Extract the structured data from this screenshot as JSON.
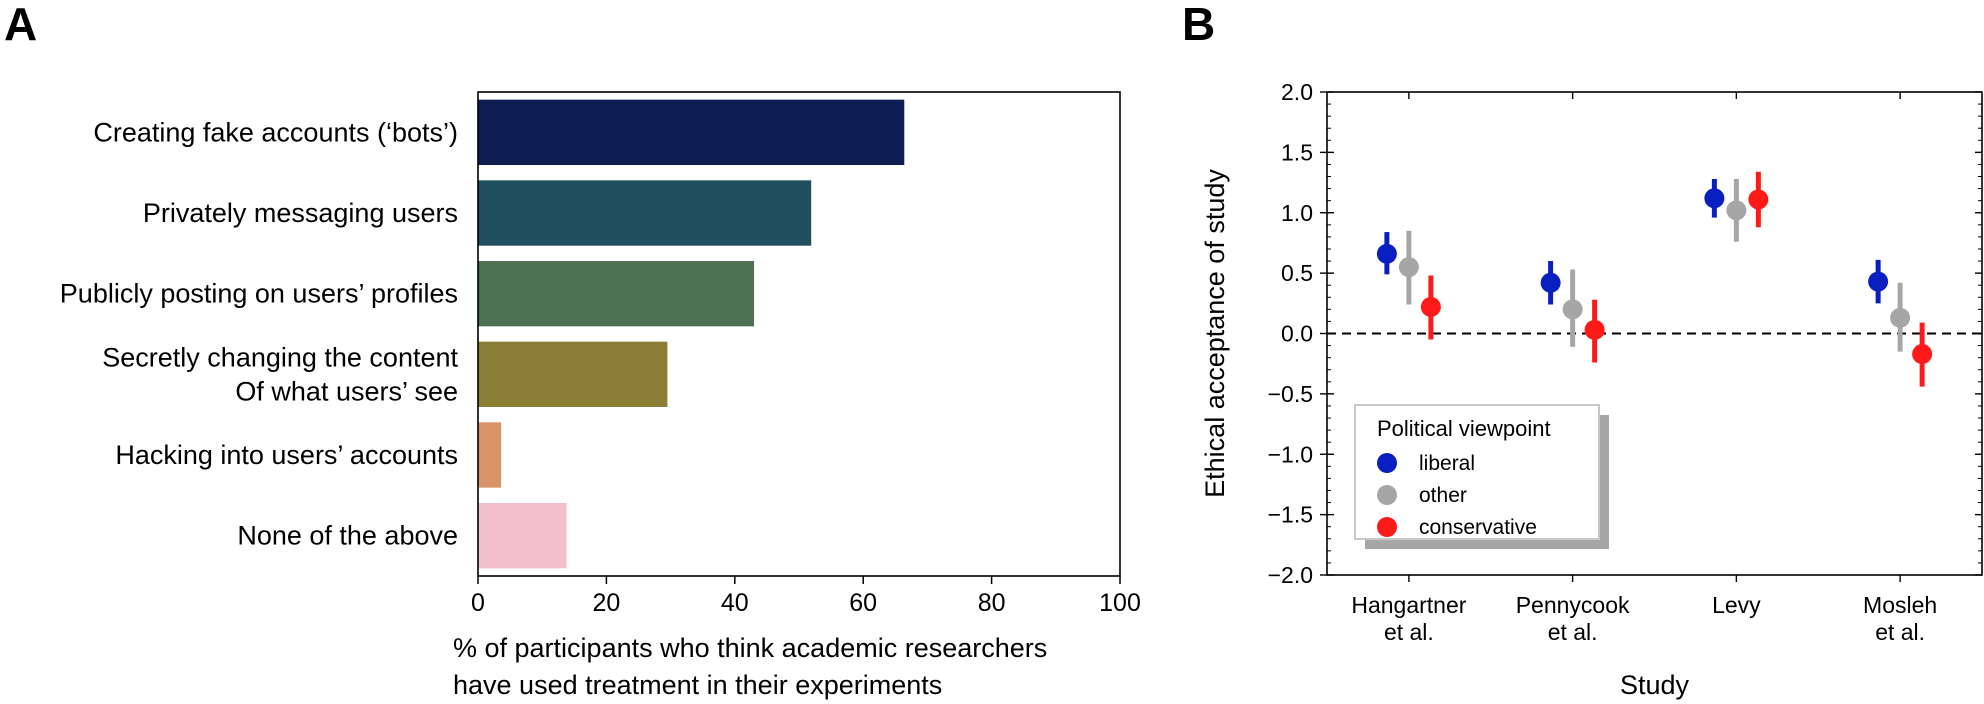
{
  "panels": {
    "a_label": "A",
    "b_label": "B"
  },
  "chart_data": [
    {
      "type": "bar",
      "orientation": "horizontal",
      "categories": [
        [
          "Creating fake accounts (‘bots’)"
        ],
        [
          "Privately messaging users"
        ],
        [
          "Publicly posting on users’ profiles"
        ],
        [
          "Secretly changing the content",
          "Of what users’ see"
        ],
        [
          "Hacking into users’ accounts"
        ],
        [
          "None of the above"
        ]
      ],
      "values": [
        66.4,
        51.9,
        43.0,
        29.5,
        3.6,
        13.8
      ],
      "colors": [
        "#0f1e52",
        "#1f4e5f",
        "#4d7152",
        "#8a7f35",
        "#d9946a",
        "#f3bfcb"
      ],
      "xlabel": [
        "% of participants who think academic researchers",
        "have used treatment in their experiments"
      ],
      "xlim": [
        0,
        100
      ],
      "xticks": [
        0,
        20,
        40,
        60,
        80,
        100
      ]
    },
    {
      "type": "scatter",
      "subtype": "dot-with-error-bars",
      "categories": [
        [
          "Hangartner",
          "et al."
        ],
        [
          "Pennycook",
          "et al."
        ],
        [
          "Levy"
        ],
        [
          "Mosleh",
          "et al."
        ]
      ],
      "series": [
        {
          "name": "liberal",
          "color": "#0a1fbf",
          "values": [
            0.66,
            0.42,
            1.12,
            0.43
          ],
          "lower": [
            0.49,
            0.24,
            0.96,
            0.25
          ],
          "upper": [
            0.84,
            0.6,
            1.28,
            0.61
          ]
        },
        {
          "name": "other",
          "color": "#a6a6a6",
          "values": [
            0.55,
            0.2,
            1.02,
            0.13
          ],
          "lower": [
            0.24,
            -0.11,
            0.76,
            -0.15
          ],
          "upper": [
            0.85,
            0.53,
            1.28,
            0.42
          ]
        },
        {
          "name": "conservative",
          "color": "#ff1a1a",
          "values": [
            0.22,
            0.03,
            1.11,
            -0.17
          ],
          "lower": [
            -0.05,
            -0.24,
            0.88,
            -0.44
          ],
          "upper": [
            0.48,
            0.28,
            1.34,
            0.09
          ]
        }
      ],
      "xlabel": "Study",
      "ylabel": "Ethical acceptance of study",
      "ylim": [
        -2.0,
        2.0
      ],
      "yticks": [
        "−2.0",
        "−1.5",
        "−1.0",
        "−0.5",
        "0.0",
        "0.5",
        "1.0",
        "1.5",
        "2.0"
      ],
      "reference_line": 0.0,
      "legend": {
        "title": "Political viewpoint",
        "placement": "lower-left"
      }
    }
  ]
}
